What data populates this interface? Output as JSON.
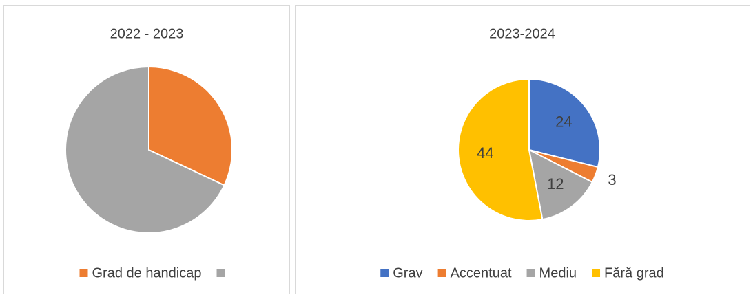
{
  "chart_data": [
    {
      "type": "pie",
      "title": "2022 - 2023",
      "categories": [
        "Grad de handicap",
        null
      ],
      "values": [
        32,
        68
      ],
      "colors": [
        "#ed7d31",
        "#a5a5a5"
      ],
      "data_labels": false
    },
    {
      "type": "pie",
      "title": "2023-2024",
      "categories": [
        "Grav",
        "Accentuat",
        "Mediu",
        "Fără grad"
      ],
      "values": [
        24,
        3,
        12,
        44
      ],
      "colors": [
        "#4472c4",
        "#ed7d31",
        "#a5a5a5",
        "#ffc000"
      ],
      "data_labels": true
    }
  ]
}
